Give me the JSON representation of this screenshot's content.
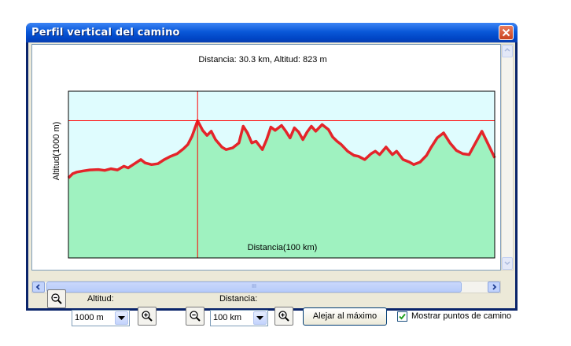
{
  "window": {
    "title": "Perfil vertical del camino"
  },
  "chart_data": {
    "type": "area",
    "title": "Distancia: 30.3 km, Altitud: 823 m",
    "xlabel": "Distancia(100 km)",
    "ylabel": "Altitud(1000 m)",
    "xlim": [
      0,
      100
    ],
    "ylim": [
      0,
      1000
    ],
    "cursor": {
      "x": 30.3,
      "y": 823
    },
    "series": [
      {
        "x": [
          0,
          1,
          2,
          3.5,
          5,
          7,
          8.5,
          10,
          11.5,
          13,
          14,
          15.5,
          17,
          18,
          19.5,
          21,
          22.5,
          24,
          25.5,
          27,
          28,
          29,
          30.3,
          31.5,
          32.5,
          33.5,
          34.5,
          36,
          37,
          38.5,
          40,
          41,
          42,
          43,
          44,
          45.5,
          46.5,
          47.5,
          48.5,
          50,
          51,
          52,
          53,
          54,
          55,
          56,
          57,
          58,
          59.5,
          61,
          62,
          63,
          64,
          65.5,
          67,
          68,
          69.5,
          71,
          72,
          73,
          74.5,
          76,
          77,
          78.5,
          80,
          81,
          82.5,
          84,
          85,
          86.5,
          88,
          89.5,
          91,
          92.5,
          94,
          95.5,
          97,
          98.5,
          100
        ],
        "y": [
          480,
          505,
          515,
          522,
          528,
          530,
          525,
          535,
          528,
          550,
          540,
          565,
          590,
          570,
          560,
          565,
          590,
          610,
          625,
          655,
          680,
          730,
          823,
          765,
          735,
          760,
          710,
          665,
          650,
          660,
          690,
          790,
          750,
          690,
          700,
          650,
          710,
          785,
          765,
          795,
          760,
          720,
          780,
          755,
          710,
          755,
          790,
          760,
          800,
          770,
          725,
          700,
          680,
          640,
          615,
          610,
          590,
          625,
          640,
          620,
          665,
          620,
          640,
          590,
          575,
          560,
          575,
          615,
          660,
          720,
          750,
          690,
          645,
          625,
          620,
          690,
          760,
          680,
          600
        ]
      }
    ]
  },
  "controls": {
    "altitud_label": "Altitud:",
    "altitud_value": "1000 m",
    "distancia_label": "Distancia:",
    "distancia_value": "100 km",
    "zoom_out_all_label": "Alejar al máximo",
    "show_points_label": "Mostrar puntos de camino",
    "show_points_checked": true
  },
  "scrollbar": {
    "thumb_glyph": "III"
  },
  "colors": {
    "sky": "#dffcfe",
    "terrain": "#9ff2c0",
    "line": "#e4242a",
    "cursor": "#ff0000",
    "title_bar": "#0058e6"
  }
}
